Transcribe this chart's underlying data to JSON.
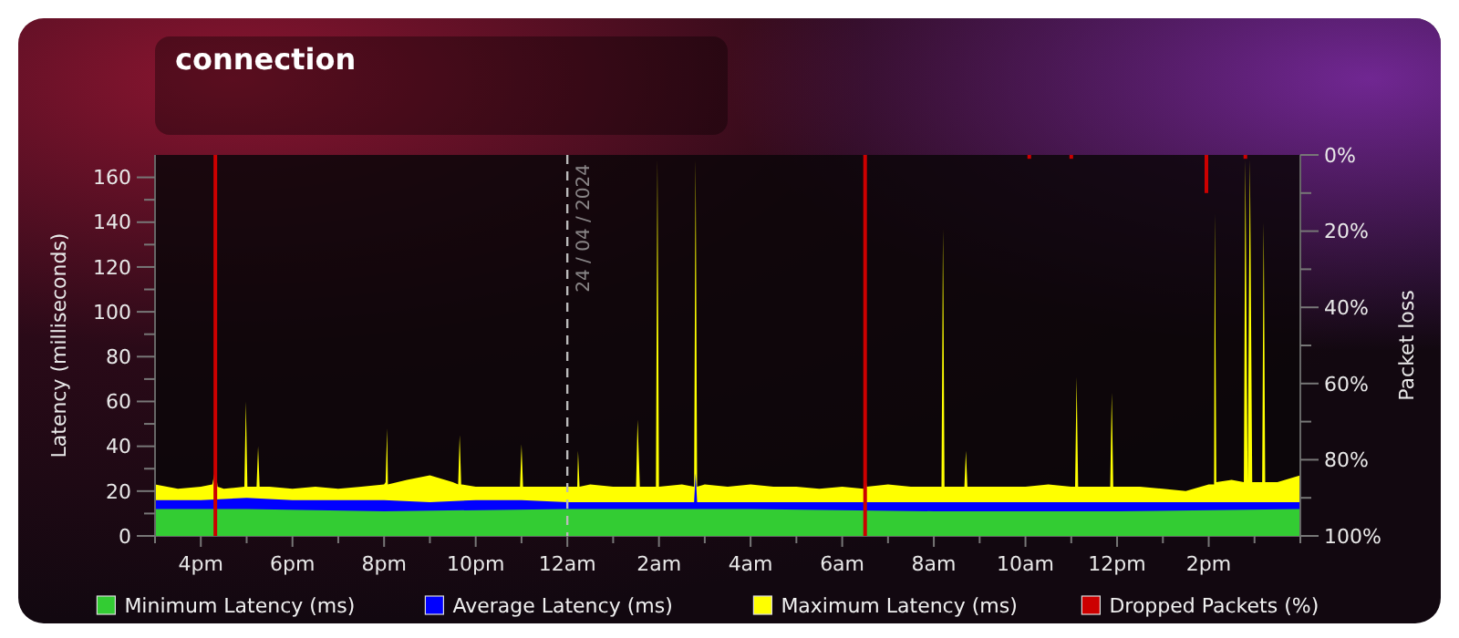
{
  "chart_data": {
    "type": "area",
    "title": "connection",
    "ylabel": "Latency (milliseconds)",
    "y2label": "Packet loss",
    "xlim": [
      "2024-04-23T15:00",
      "2024-04-24T16:00"
    ],
    "xticks": [
      {
        "value": "2024-04-23T15:00",
        "label": null
      },
      {
        "value": "2024-04-23T16:00",
        "label": "4pm"
      },
      {
        "value": "2024-04-23T17:00",
        "label": null
      },
      {
        "value": "2024-04-23T18:00",
        "label": "6pm"
      },
      {
        "value": "2024-04-23T19:00",
        "label": null
      },
      {
        "value": "2024-04-23T20:00",
        "label": "8pm"
      },
      {
        "value": "2024-04-23T21:00",
        "label": null
      },
      {
        "value": "2024-04-23T22:00",
        "label": "10pm"
      },
      {
        "value": "2024-04-23T23:00",
        "label": null
      },
      {
        "value": "2024-04-24T00:00",
        "label": "12am"
      },
      {
        "value": "2024-04-24T01:00",
        "label": null
      },
      {
        "value": "2024-04-24T02:00",
        "label": "2am"
      },
      {
        "value": "2024-04-24T03:00",
        "label": null
      },
      {
        "value": "2024-04-24T04:00",
        "label": "4am"
      },
      {
        "value": "2024-04-24T05:00",
        "label": null
      },
      {
        "value": "2024-04-24T06:00",
        "label": "6am"
      },
      {
        "value": "2024-04-24T07:00",
        "label": null
      },
      {
        "value": "2024-04-24T08:00",
        "label": "8am"
      },
      {
        "value": "2024-04-24T09:00",
        "label": null
      },
      {
        "value": "2024-04-24T10:00",
        "label": "10am"
      },
      {
        "value": "2024-04-24T11:00",
        "label": null
      },
      {
        "value": "2024-04-24T12:00",
        "label": "12pm"
      },
      {
        "value": "2024-04-24T13:00",
        "label": null
      },
      {
        "value": "2024-04-24T14:00",
        "label": "2pm"
      },
      {
        "value": "2024-04-24T15:00",
        "label": null
      },
      {
        "value": "2024-04-24T16:00",
        "label": null
      }
    ],
    "ylim": [
      0,
      170
    ],
    "yticks": [
      0,
      {
        "value": 10,
        "label": null
      },
      20,
      {
        "value": 30,
        "label": null
      },
      40,
      {
        "value": 50,
        "label": null
      },
      60,
      {
        "value": 70,
        "label": null
      },
      80,
      {
        "value": 90,
        "label": null
      },
      100,
      {
        "value": 110,
        "label": null
      },
      120,
      {
        "value": 130,
        "label": null
      },
      140,
      {
        "value": 150,
        "label": null
      },
      160
    ],
    "y2lim": [
      100,
      0
    ],
    "y2ticks": [
      {
        "value": 0,
        "label": "0%"
      },
      {
        "value": 10,
        "label": null
      },
      {
        "value": 20,
        "label": "20%"
      },
      {
        "value": 30,
        "label": null
      },
      {
        "value": 40,
        "label": "40%"
      },
      {
        "value": 50,
        "label": null
      },
      {
        "value": 60,
        "label": "60%"
      },
      {
        "value": 70,
        "label": null
      },
      {
        "value": 80,
        "label": "80%"
      },
      {
        "value": 90,
        "label": null
      },
      {
        "value": 100,
        "label": "100%"
      }
    ],
    "legend": "bottom",
    "grid": false,
    "ref_lines": [
      {
        "axis": "x",
        "value": "2024-04-24T00:00",
        "label": "24 / 04 / 2024",
        "color": "#bbbbbb",
        "line_style": "dashed"
      }
    ],
    "series": [
      {
        "name": "Minimum Latency (ms)",
        "color": "#33cc33",
        "x": [
          "2024-04-23T15:00",
          "2024-04-23T17:00",
          "2024-04-23T20:00",
          "2024-04-24T00:00",
          "2024-04-24T04:00",
          "2024-04-24T08:00",
          "2024-04-24T12:00",
          "2024-04-24T16:00"
        ],
        "values": [
          12,
          12,
          11,
          12,
          12,
          11,
          11,
          12
        ]
      },
      {
        "name": "Average Latency (ms)",
        "color": "#0000ff",
        "x": [
          "2024-04-23T15:00",
          "2024-04-23T16:00",
          "2024-04-23T17:00",
          "2024-04-23T18:00",
          "2024-04-23T19:00",
          "2024-04-23T20:00",
          "2024-04-23T21:00",
          "2024-04-23T22:00",
          "2024-04-23T23:00",
          "2024-04-24T00:00",
          "2024-04-24T01:00",
          "2024-04-24T02:00",
          "2024-04-24T02:46",
          "2024-04-24T02:48",
          "2024-04-24T02:50",
          "2024-04-24T03:00",
          "2024-04-24T04:00",
          "2024-04-24T05:00",
          "2024-04-24T06:00",
          "2024-04-24T07:00",
          "2024-04-24T08:00",
          "2024-04-24T09:00",
          "2024-04-24T10:00",
          "2024-04-24T11:00",
          "2024-04-24T12:00",
          "2024-04-24T13:00",
          "2024-04-24T14:00",
          "2024-04-24T15:00",
          "2024-04-24T16:00"
        ],
        "values": [
          16,
          16,
          17,
          16,
          16,
          16,
          15,
          16,
          16,
          15,
          15,
          15,
          15,
          28,
          15,
          15,
          15,
          15,
          15,
          15,
          15,
          15,
          15,
          15,
          15,
          15,
          15,
          15,
          15
        ]
      },
      {
        "name": "Maximum Latency (ms)",
        "color": "#ffff00",
        "x": [
          "2024-04-23T15:00",
          "2024-04-23T15:30",
          "2024-04-23T16:00",
          "2024-04-23T16:15",
          "2024-04-23T16:19",
          "2024-04-23T16:22",
          "2024-04-23T16:30",
          "2024-04-23T16:57",
          "2024-04-23T16:59",
          "2024-04-23T17:01",
          "2024-04-23T17:13",
          "2024-04-23T17:15",
          "2024-04-23T17:17",
          "2024-04-23T17:30",
          "2024-04-23T18:00",
          "2024-04-23T18:30",
          "2024-04-23T19:00",
          "2024-04-23T19:30",
          "2024-04-23T20:00",
          "2024-04-23T20:02",
          "2024-04-23T20:04",
          "2024-04-23T20:05",
          "2024-04-23T20:30",
          "2024-04-23T21:00",
          "2024-04-23T21:30",
          "2024-04-23T21:37",
          "2024-04-23T21:39",
          "2024-04-23T21:41",
          "2024-04-23T22:00",
          "2024-04-23T22:30",
          "2024-04-23T22:58",
          "2024-04-23T23:00",
          "2024-04-23T23:02",
          "2024-04-23T23:30",
          "2024-04-24T00:00",
          "2024-04-24T00:13",
          "2024-04-24T00:14",
          "2024-04-24T00:16",
          "2024-04-24T00:30",
          "2024-04-24T01:00",
          "2024-04-24T01:30",
          "2024-04-24T01:32",
          "2024-04-24T01:35",
          "2024-04-24T01:56",
          "2024-04-24T01:58",
          "2024-04-24T02:00",
          "2024-04-24T02:30",
          "2024-04-24T02:46",
          "2024-04-24T02:48",
          "2024-04-24T02:50",
          "2024-04-24T03:00",
          "2024-04-24T03:30",
          "2024-04-24T04:00",
          "2024-04-24T04:30",
          "2024-04-24T05:00",
          "2024-04-24T05:30",
          "2024-04-24T06:00",
          "2024-04-24T06:28",
          "2024-04-24T06:30",
          "2024-04-24T06:32",
          "2024-04-24T07:00",
          "2024-04-24T07:30",
          "2024-04-24T08:00",
          "2024-04-24T08:10",
          "2024-04-24T08:12",
          "2024-04-24T08:14",
          "2024-04-24T08:30",
          "2024-04-24T08:40",
          "2024-04-24T08:42",
          "2024-04-24T08:44",
          "2024-04-24T09:00",
          "2024-04-24T09:30",
          "2024-04-24T10:00",
          "2024-04-24T10:30",
          "2024-04-24T11:00",
          "2024-04-24T11:05",
          "2024-04-24T11:07",
          "2024-04-24T11:09",
          "2024-04-24T11:30",
          "2024-04-24T11:51",
          "2024-04-24T11:53",
          "2024-04-24T11:55",
          "2024-04-24T12:30",
          "2024-04-24T13:00",
          "2024-04-24T13:30",
          "2024-04-24T14:00",
          "2024-04-24T14:07",
          "2024-04-24T14:08",
          "2024-04-24T14:10",
          "2024-04-24T14:30",
          "2024-04-24T14:46",
          "2024-04-24T14:48",
          "2024-04-24T14:51",
          "2024-04-24T14:54",
          "2024-04-24T14:57",
          "2024-04-24T15:10",
          "2024-04-24T15:12",
          "2024-04-24T15:14",
          "2024-04-24T15:30",
          "2024-04-24T16:00"
        ],
        "values": [
          23,
          21,
          22,
          23,
          30,
          22,
          21,
          22,
          60,
          22,
          22,
          40,
          22,
          22,
          21,
          22,
          21,
          22,
          23,
          24,
          48,
          23,
          25,
          27,
          24,
          23,
          45,
          23,
          22,
          22,
          22,
          41,
          22,
          22,
          22,
          22,
          38,
          22,
          23,
          22,
          22,
          52,
          22,
          22,
          168,
          22,
          23,
          22,
          168,
          22,
          23,
          22,
          23,
          22,
          22,
          21,
          22,
          21,
          30,
          22,
          23,
          22,
          22,
          22,
          137,
          22,
          22,
          22,
          38,
          22,
          22,
          22,
          22,
          23,
          22,
          22,
          71,
          22,
          22,
          22,
          64,
          22,
          22,
          21,
          20,
          23,
          23,
          144,
          24,
          25,
          24,
          168,
          24,
          168,
          24,
          24,
          140,
          24,
          24,
          27
        ]
      },
      {
        "name": "Dropped Packets (%)",
        "type": "bar",
        "axis": "y2",
        "color": "#cc0000",
        "x": [
          "2024-04-23T16:19",
          "2024-04-24T06:30",
          "2024-04-24T10:05",
          "2024-04-24T11:00",
          "2024-04-24T13:57",
          "2024-04-24T14:48"
        ],
        "values": [
          100,
          100,
          1,
          1,
          10,
          1
        ]
      }
    ]
  }
}
